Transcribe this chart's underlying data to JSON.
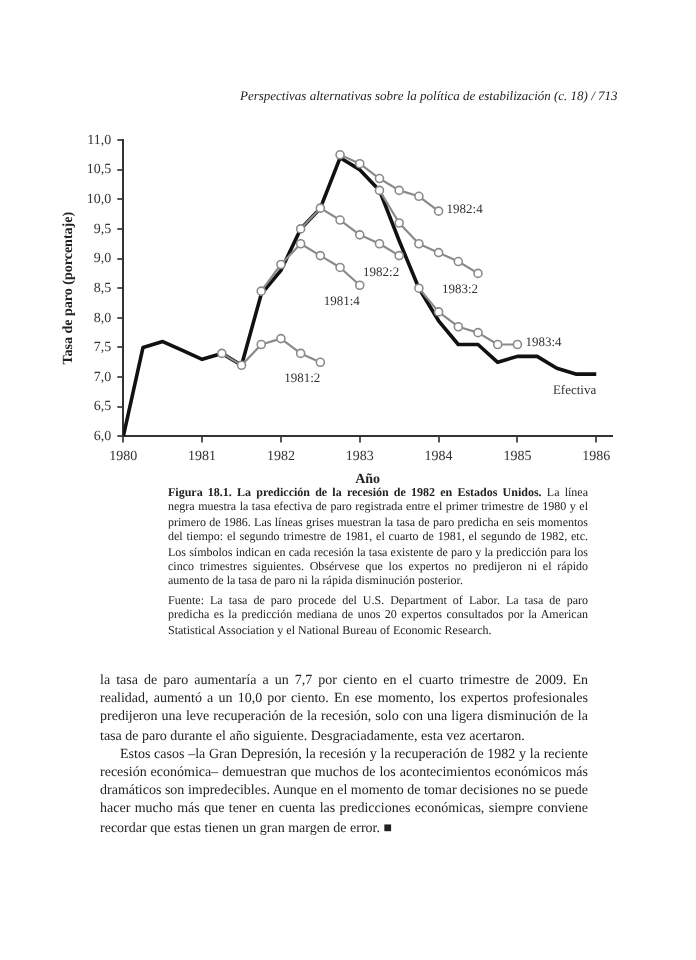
{
  "chart_data": {
    "type": "line",
    "title": "Figura 18.1. La predicción de la recesión de 1982 en Estados Unidos.",
    "subtitle": "La línea negra muestra la tasa efectiva de paro registrada entre el primer trimestre de 1980 y el primero de 1986. Las líneas grises muestran la tasa de paro predicha en seis momentos del tiempo: el segundo trimestre de 1981, el cuarto de 1981, el segundo de 1982, etc. Los símbolos indican en cada recesión la tasa existente de paro y la predicción para los cinco trimestres siguientes. Obsérvese que los expertos no predijeron ni el rápido aumento de la tasa de paro ni la rápida disminución posterior.",
    "xlabel": "Año",
    "ylabel": "Tasa de paro (porcentaje)",
    "annotations": [
      "Perspectivas alternativas sobre la política de estabilización (c. 18) / 713",
      "Fuente: La tasa de paro procede del U.S. Department of Labor. La tasa de paro predicha es la predicción mediana de unos 20 expertos consultados por la American Statistical Association y el National Bureau of Economic Research.",
      "la tasa de paro aumentaría a un 7,7 por ciento en el cuarto trimestre de 2009. En realidad, aumentó a un 10,0 por ciento. En ese momento, los expertos profesionales predijeron una leve recuperación de la recesión, solo con una ligera disminución de la tasa de paro durante el año siguiente. Desgraciadamente, esta vez acertaron.",
      "Estos casos –la Gran Depresión, la recesión y la recuperación de 1982 y la reciente recesión económica– demuestran que muchos de los acontecimientos económicos más dramáticos son impredecibles. Aunque en el momento de tomar decisiones no se puede hacer mucho más que tener en cuenta las predicciones económicas, siempre conviene recordar que estas tienen un gran margen de error. ■"
    ],
    "xlim": [
      1980,
      1986.2
    ],
    "xticks": [
      1980,
      1981,
      1982,
      1983,
      1984,
      1985,
      1986
    ],
    "ylim": [
      6,
      11
    ],
    "yticks": [
      {
        "value": 6,
        "label": "6,0"
      },
      {
        "value": 6.5,
        "label": "6,5"
      },
      {
        "value": 7,
        "label": "7,0"
      },
      {
        "value": 7.5,
        "label": "7,5"
      },
      {
        "value": 8,
        "label": "8,0"
      },
      {
        "value": 8.5,
        "label": "8,5"
      },
      {
        "value": 9,
        "label": "9,0"
      },
      {
        "value": 9.5,
        "label": "9,5"
      },
      {
        "value": 10,
        "label": "10,0"
      },
      {
        "value": 10.5,
        "label": "10,5"
      },
      {
        "value": 11,
        "label": "11,0"
      }
    ],
    "marker": "circle",
    "line_style": "solid",
    "series": [
      {
        "name": "1981:2",
        "color": "#8a8a8a",
        "x": [
          1981.25,
          1981.5,
          1981.75,
          1982,
          1982.25,
          1982.5
        ],
        "values": [
          7.4,
          7.2,
          7.55,
          7.65,
          7.4,
          7.25
        ]
      },
      {
        "name": "1981:4",
        "color": "#8a8a8a",
        "x": [
          1981.75,
          1982,
          1982.25,
          1982.5,
          1982.75,
          1983
        ],
        "values": [
          8.45,
          8.9,
          9.25,
          9.05,
          8.85,
          8.55
        ]
      },
      {
        "name": "1982:2",
        "color": "#8a8a8a",
        "x": [
          1982.25,
          1982.5,
          1982.75,
          1983,
          1983.25,
          1983.5
        ],
        "values": [
          9.5,
          9.85,
          9.65,
          9.4,
          9.25,
          9.05
        ]
      },
      {
        "name": "1982:4",
        "color": "#8a8a8a",
        "x": [
          1982.75,
          1983,
          1983.25,
          1983.5,
          1983.75,
          1984
        ],
        "values": [
          10.75,
          10.6,
          10.35,
          10.15,
          10.05,
          9.8
        ]
      },
      {
        "name": "1983:2",
        "color": "#8a8a8a",
        "x": [
          1983.25,
          1983.5,
          1983.75,
          1984,
          1984.25,
          1984.5
        ],
        "values": [
          10.15,
          9.6,
          9.25,
          9.1,
          8.95,
          8.75
        ]
      },
      {
        "name": "1983:4",
        "color": "#8a8a8a",
        "x": [
          1983.75,
          1984,
          1984.25,
          1984.5,
          1984.75,
          1985
        ],
        "values": [
          8.5,
          8.1,
          7.85,
          7.75,
          7.55,
          7.55
        ]
      },
      {
        "name": "Efectiva",
        "color": "#111111",
        "marker": "none",
        "x": [
          1980,
          1980.25,
          1980.5,
          1980.75,
          1981,
          1981.25,
          1981.5,
          1981.75,
          1982,
          1982.25,
          1982.5,
          1982.75,
          1983,
          1983.25,
          1983.5,
          1983.75,
          1984,
          1984.25,
          1984.5,
          1984.75,
          1985,
          1985.25,
          1985.5,
          1985.75,
          1986
        ],
        "values": [
          6.0,
          7.5,
          7.6,
          7.45,
          7.3,
          7.4,
          7.2,
          8.4,
          8.8,
          9.5,
          9.85,
          10.7,
          10.5,
          10.15,
          9.3,
          8.5,
          7.95,
          7.55,
          7.55,
          7.25,
          7.35,
          7.35,
          7.15,
          7.05,
          7.05
        ]
      }
    ]
  }
}
